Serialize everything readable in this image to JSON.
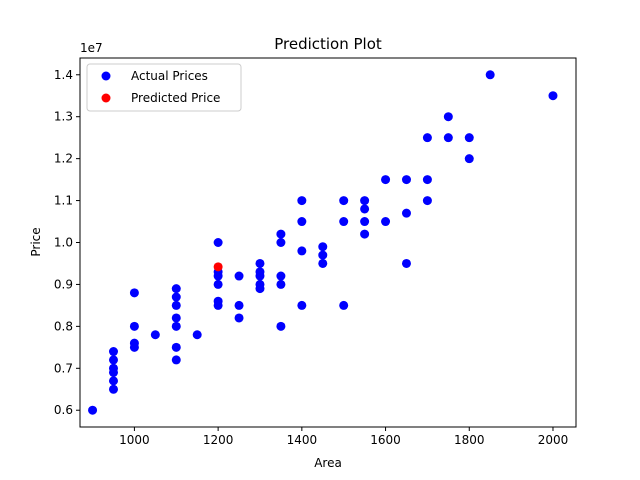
{
  "chart_data": {
    "type": "scatter",
    "title": "Prediction Plot",
    "xlabel": "Area",
    "ylabel": "Price",
    "y_multiplier_label": "1e7",
    "xlim": [
      870,
      2055
    ],
    "ylim": [
      5.6,
      14.4
    ],
    "xticks": [
      1000,
      1200,
      1400,
      1600,
      1800,
      2000
    ],
    "yticks": [
      0.6,
      0.7,
      0.8,
      0.9,
      1.0,
      1.1,
      1.2,
      1.3,
      1.4
    ],
    "ytick_labels": [
      "0.6",
      "0.7",
      "0.8",
      "0.9",
      "1.0",
      "1.1",
      "1.2",
      "1.3",
      "1.4"
    ],
    "grid": false,
    "legend_position": "upper left",
    "series": [
      {
        "name": "Actual Prices",
        "color": "#0000ff",
        "points": [
          [
            900,
            6.0
          ],
          [
            950,
            6.5
          ],
          [
            950,
            6.7
          ],
          [
            950,
            6.9
          ],
          [
            950,
            7.0
          ],
          [
            950,
            7.2
          ],
          [
            950,
            7.4
          ],
          [
            1000,
            7.5
          ],
          [
            1000,
            7.6
          ],
          [
            1000,
            8.0
          ],
          [
            1000,
            8.8
          ],
          [
            1050,
            7.8
          ],
          [
            1100,
            7.2
          ],
          [
            1100,
            7.5
          ],
          [
            1100,
            8.0
          ],
          [
            1100,
            8.2
          ],
          [
            1100,
            8.5
          ],
          [
            1100,
            8.7
          ],
          [
            1100,
            8.9
          ],
          [
            1150,
            7.8
          ],
          [
            1200,
            8.5
          ],
          [
            1200,
            8.6
          ],
          [
            1200,
            9.0
          ],
          [
            1200,
            9.2
          ],
          [
            1200,
            9.3
          ],
          [
            1200,
            10.0
          ],
          [
            1250,
            8.2
          ],
          [
            1250,
            8.5
          ],
          [
            1250,
            9.2
          ],
          [
            1300,
            8.9
          ],
          [
            1300,
            9.0
          ],
          [
            1300,
            9.2
          ],
          [
            1300,
            9.3
          ],
          [
            1300,
            9.5
          ],
          [
            1350,
            8.0
          ],
          [
            1350,
            9.0
          ],
          [
            1350,
            9.2
          ],
          [
            1350,
            10.0
          ],
          [
            1350,
            10.2
          ],
          [
            1400,
            8.5
          ],
          [
            1400,
            9.8
          ],
          [
            1400,
            10.5
          ],
          [
            1400,
            11.0
          ],
          [
            1450,
            9.5
          ],
          [
            1450,
            9.7
          ],
          [
            1450,
            9.9
          ],
          [
            1500,
            8.5
          ],
          [
            1500,
            10.5
          ],
          [
            1500,
            11.0
          ],
          [
            1550,
            10.2
          ],
          [
            1550,
            10.5
          ],
          [
            1550,
            10.8
          ],
          [
            1550,
            11.0
          ],
          [
            1600,
            10.5
          ],
          [
            1600,
            11.5
          ],
          [
            1650,
            9.5
          ],
          [
            1650,
            10.7
          ],
          [
            1650,
            11.5
          ],
          [
            1700,
            11.0
          ],
          [
            1700,
            11.5
          ],
          [
            1700,
            12.5
          ],
          [
            1750,
            12.5
          ],
          [
            1750,
            13.0
          ],
          [
            1800,
            12.0
          ],
          [
            1800,
            12.5
          ],
          [
            1850,
            14.0
          ],
          [
            2000,
            13.5
          ]
        ]
      },
      {
        "name": "Predicted Price",
        "color": "#ff0000",
        "points": [
          [
            1200,
            9.42
          ]
        ]
      }
    ]
  }
}
